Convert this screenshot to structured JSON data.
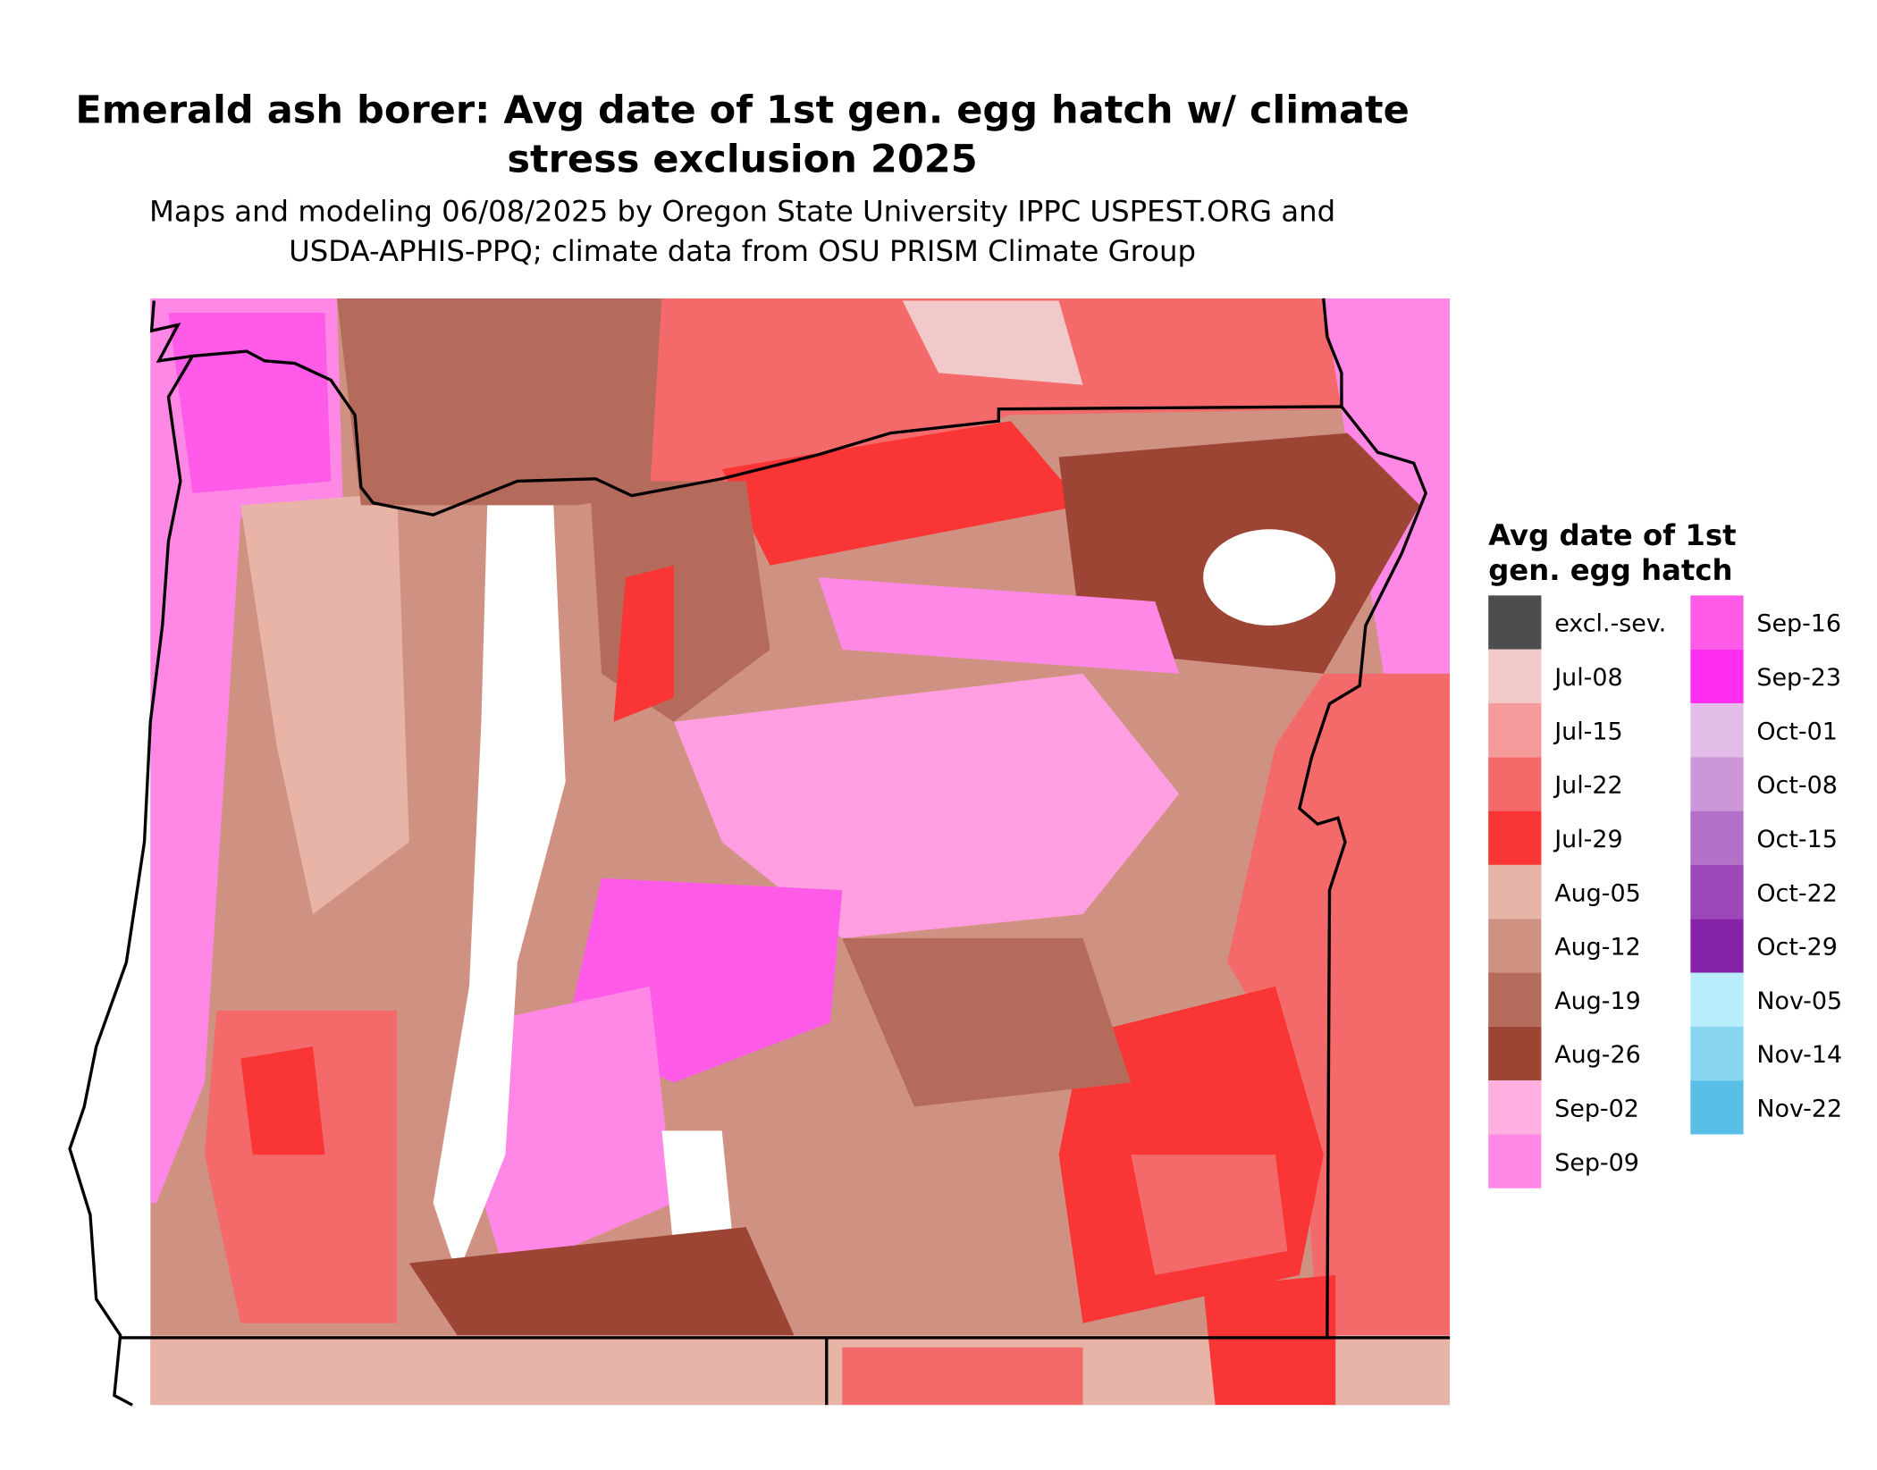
{
  "title": [
    "Emerald ash borer: Avg date of 1st gen. egg hatch w/ climate",
    "stress exclusion 2025"
  ],
  "subtitle": [
    "Maps and modeling 06/08/2025 by Oregon State University IPPC USPEST.ORG and",
    "USDA-APHIS-PPQ; climate data from OSU PRISM Climate Group"
  ],
  "legend": {
    "title": [
      "Avg date of 1st",
      "gen. egg hatch"
    ],
    "items": [
      {
        "label": "excl.-sev.",
        "color": "#4d4d4d"
      },
      {
        "label": "Jul-08",
        "color": "#f2c9c9"
      },
      {
        "label": "Jul-15",
        "color": "#f49a9a"
      },
      {
        "label": "Jul-22",
        "color": "#f46a6a"
      },
      {
        "label": "Jul-29",
        "color": "#f93535"
      },
      {
        "label": "Aug-05",
        "color": "#e8b4a8"
      },
      {
        "label": "Aug-12",
        "color": "#cf9282"
      },
      {
        "label": "Aug-19",
        "color": "#b56b5c"
      },
      {
        "label": "Aug-26",
        "color": "#9c4535"
      },
      {
        "label": "Sep-02",
        "color": "#ffb0e0"
      },
      {
        "label": "Sep-09",
        "color": "#ff88e6"
      },
      {
        "label": "Sep-16",
        "color": "#ff5ae8"
      },
      {
        "label": "Sep-23",
        "color": "#ff2ef0"
      },
      {
        "label": "Oct-01",
        "color": "#e2bde8"
      },
      {
        "label": "Oct-08",
        "color": "#cc96d8"
      },
      {
        "label": "Oct-15",
        "color": "#b46fc8"
      },
      {
        "label": "Oct-22",
        "color": "#9d48b8"
      },
      {
        "label": "Oct-29",
        "color": "#8522a8"
      },
      {
        "label": "Nov-05",
        "color": "#b8eefc"
      },
      {
        "label": "Nov-14",
        "color": "#88d6f0"
      },
      {
        "label": "Nov-22",
        "color": "#5abfe6"
      }
    ]
  }
}
